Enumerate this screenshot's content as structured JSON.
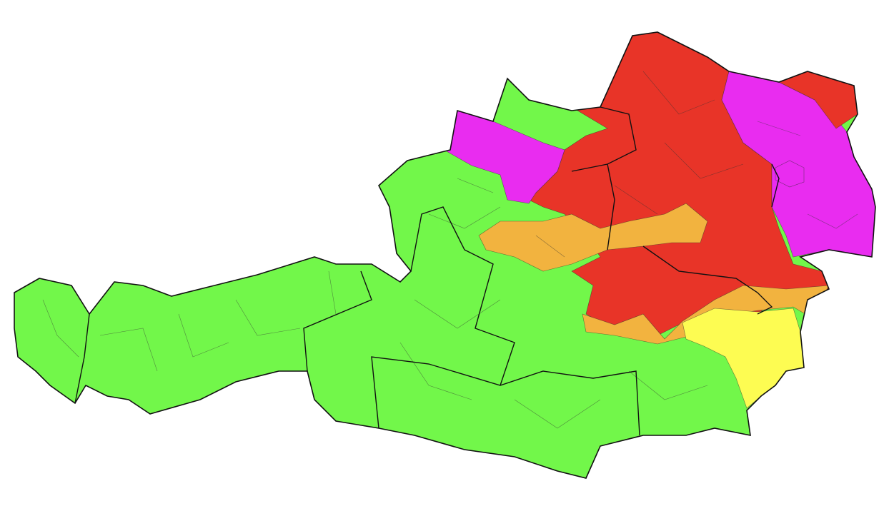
{
  "map": {
    "colors": {
      "level_green": "#72f74a",
      "level_yellow": "#fdfc52",
      "level_orange": "#f2b33f",
      "level_red": "#e83428",
      "level_magenta": "#e92cf0"
    }
  }
}
